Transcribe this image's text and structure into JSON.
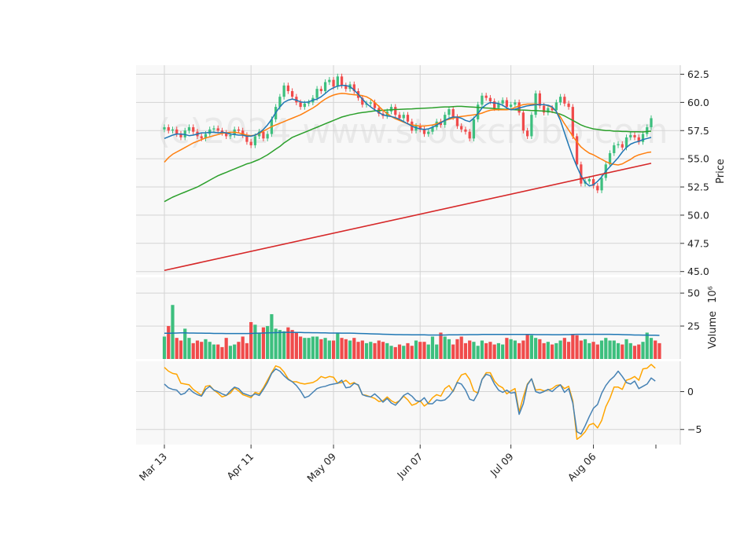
{
  "chart_data": {
    "type": "candlestick",
    "watermark": "(c)2024 www.stockcrobo.com",
    "colors": {
      "up": "#3dbf7e",
      "down": "#f04b4b",
      "ma_short": "#1f77b4",
      "ma_mid": "#ff7f0e",
      "ma_long": "#2ca02c",
      "ma_very_long": "#d62728",
      "vol_ma": "#1f77b4",
      "osc_1": "#4682b4",
      "osc_2": "#ffa500"
    },
    "x_tick_labels": [
      "Mar 13",
      "Apr 11",
      "May 09",
      "Jun 07",
      "Jul 09",
      "Aug 06"
    ],
    "price_panel": {
      "ylabel": "Price",
      "ylim": [
        44.7,
        63.3
      ],
      "yticks": [
        45.0,
        47.5,
        50.0,
        52.5,
        55.0,
        57.5,
        60.0,
        62.5
      ],
      "ytick_labels": [
        "45.0",
        "47.5",
        "50.0",
        "52.5",
        "55.0",
        "57.5",
        "60.0",
        "62.5"
      ],
      "close": [
        57.8,
        57.5,
        57.6,
        57.2,
        56.9,
        57.5,
        57.8,
        57.4,
        57.0,
        56.8,
        57.2,
        57.6,
        57.7,
        57.5,
        57.3,
        57.0,
        57.1,
        57.6,
        57.5,
        57.1,
        56.5,
        56.2,
        57.0,
        57.4,
        56.8,
        57.2,
        58.5,
        59.6,
        60.5,
        61.5,
        61.0,
        60.5,
        60.0,
        59.6,
        59.9,
        60.0,
        60.4,
        61.2,
        61.0,
        61.8,
        62.0,
        61.4,
        62.3,
        61.5,
        61.2,
        61.6,
        61.0,
        60.4,
        59.8,
        59.9,
        60.0,
        59.5,
        59.0,
        58.8,
        59.2,
        59.6,
        58.9,
        58.6,
        58.9,
        58.3,
        57.5,
        57.9,
        57.6,
        57.2,
        57.4,
        57.8,
        58.3,
        58.0,
        58.9,
        59.4,
        58.7,
        57.9,
        57.6,
        57.4,
        56.8,
        58.5,
        59.8,
        60.6,
        60.4,
        60.1,
        59.5,
        59.9,
        60.2,
        59.6,
        59.8,
        60.0,
        59.1,
        57.5,
        57.0,
        58.9,
        60.8,
        59.7,
        59.1,
        59.5,
        59.3,
        60.0,
        60.5,
        59.9,
        59.6,
        57.0,
        54.5,
        52.8,
        53.0,
        53.2,
        52.6,
        52.2,
        53.3,
        54.5,
        55.5,
        56.2,
        56.3,
        56.0,
        56.9,
        57.1,
        56.9,
        56.5,
        57.2,
        57.8,
        58.6
      ],
      "ma_short": [
        56.8,
        56.95,
        57.1,
        57.2,
        57.2,
        57.15,
        57.05,
        57.1,
        57.2,
        57.3,
        57.3,
        57.35,
        57.35,
        57.3,
        57.35,
        57.3,
        57.2,
        57.15,
        57.1,
        57.1,
        57.0,
        57.0,
        57.1,
        57.3,
        57.6,
        58.0,
        58.5,
        59.1,
        59.6,
        60.0,
        60.2,
        60.3,
        60.2,
        60.05,
        60.0,
        60.05,
        60.2,
        60.3,
        60.5,
        60.8,
        61.1,
        61.3,
        61.45,
        61.5,
        61.5,
        61.4,
        61.1,
        60.7,
        60.3,
        59.9,
        59.6,
        59.35,
        59.1,
        58.9,
        58.8,
        58.75,
        58.65,
        58.5,
        58.3,
        58.1,
        57.9,
        57.75,
        57.65,
        57.6,
        57.65,
        57.8,
        58.0,
        58.2,
        58.4,
        58.6,
        58.7,
        58.7,
        58.6,
        58.4,
        58.3,
        58.6,
        59.0,
        59.5,
        59.8,
        60.0,
        59.95,
        59.9,
        59.75,
        59.5,
        59.35,
        59.4,
        59.5,
        59.6,
        59.7,
        59.75,
        59.8,
        59.8,
        59.8,
        59.75,
        59.6,
        59.2,
        58.4,
        57.3,
        56.2,
        55.2,
        54.3,
        53.5,
        52.9,
        52.6,
        52.7,
        53.0,
        53.4,
        53.9,
        54.3,
        54.7,
        55.1,
        55.6,
        56.0,
        56.3,
        56.45,
        56.55,
        56.7,
        56.8,
        56.9
      ],
      "ma_mid": [
        54.7,
        55.1,
        55.4,
        55.6,
        55.8,
        56.0,
        56.2,
        56.4,
        56.55,
        56.7,
        56.85,
        56.95,
        57.05,
        57.15,
        57.25,
        57.3,
        57.35,
        57.35,
        57.3,
        57.2,
        57.1,
        57.05,
        57.1,
        57.25,
        57.45,
        57.65,
        57.85,
        58.0,
        58.15,
        58.3,
        58.45,
        58.6,
        58.75,
        58.9,
        59.1,
        59.3,
        59.5,
        59.75,
        60.05,
        60.3,
        60.5,
        60.65,
        60.75,
        60.8,
        60.78,
        60.72,
        60.68,
        60.65,
        60.6,
        60.5,
        60.3,
        60.0,
        59.65,
        59.3,
        59.0,
        58.75,
        58.55,
        58.4,
        58.25,
        58.1,
        58.0,
        57.95,
        57.9,
        57.9,
        57.95,
        58.0,
        58.1,
        58.25,
        58.4,
        58.5,
        58.6,
        58.7,
        58.75,
        58.8,
        58.85,
        58.9,
        58.95,
        59.05,
        59.2,
        59.3,
        59.35,
        59.35,
        59.35,
        59.35,
        59.4,
        59.55,
        59.7,
        59.8,
        59.85,
        59.85,
        59.85,
        59.8,
        59.8,
        59.7,
        59.55,
        59.2,
        58.7,
        58.1,
        57.55,
        57.0,
        56.5,
        56.05,
        55.75,
        55.5,
        55.35,
        55.15,
        54.95,
        54.75,
        54.6,
        54.5,
        54.45,
        54.55,
        54.75,
        54.95,
        55.2,
        55.35,
        55.45,
        55.55,
        55.6
      ],
      "ma_long": [
        51.2,
        51.4,
        51.6,
        51.75,
        51.9,
        52.05,
        52.2,
        52.35,
        52.5,
        52.7,
        52.9,
        53.1,
        53.3,
        53.5,
        53.65,
        53.8,
        53.95,
        54.1,
        54.25,
        54.4,
        54.55,
        54.65,
        54.8,
        54.95,
        55.15,
        55.35,
        55.6,
        55.85,
        56.1,
        56.4,
        56.65,
        56.9,
        57.05,
        57.2,
        57.35,
        57.5,
        57.65,
        57.8,
        57.95,
        58.1,
        58.25,
        58.4,
        58.55,
        58.7,
        58.8,
        58.9,
        58.97,
        59.05,
        59.1,
        59.15,
        59.2,
        59.25,
        59.28,
        59.3,
        59.32,
        59.35,
        59.37,
        59.38,
        59.4,
        59.42,
        59.43,
        59.45,
        59.47,
        59.48,
        59.5,
        59.52,
        59.55,
        59.58,
        59.6,
        59.6,
        59.62,
        59.65,
        59.65,
        59.62,
        59.6,
        59.58,
        59.55,
        59.53,
        59.5,
        59.48,
        59.45,
        59.42,
        59.4,
        59.38,
        59.37,
        59.35,
        59.33,
        59.32,
        59.3,
        59.28,
        59.27,
        59.25,
        59.23,
        59.2,
        59.15,
        59.05,
        58.95,
        58.8,
        58.6,
        58.4,
        58.2,
        58.0,
        57.85,
        57.75,
        57.65,
        57.6,
        57.55,
        57.5,
        57.5,
        57.45,
        57.45,
        57.42,
        57.42,
        57.4,
        57.4,
        57.4,
        57.38,
        57.42,
        57.45
      ],
      "ma_very_long_start": 45.1,
      "ma_very_long_end": 54.6
    },
    "volume_panel": {
      "ylabel": "Volume",
      "ylabel_exponent": "10⁶",
      "ylim": [
        0,
        62
      ],
      "yticks": [
        25,
        50
      ],
      "ytick_labels": [
        "25",
        "50"
      ],
      "volume": [
        17,
        25,
        41,
        16,
        14,
        23,
        16,
        12,
        14,
        13,
        15,
        13,
        11,
        11,
        9,
        16,
        10,
        11,
        13,
        17,
        12,
        28,
        26,
        20,
        24,
        25,
        34,
        23,
        22,
        21,
        24,
        22,
        20,
        17,
        16,
        16,
        17,
        17,
        15,
        16,
        14,
        14,
        20,
        16,
        15,
        14,
        16,
        13,
        14,
        12,
        13,
        12,
        14,
        13,
        12,
        10,
        9,
        11,
        10,
        12,
        10,
        14,
        13,
        13,
        11,
        17,
        11,
        20,
        17,
        15,
        11,
        15,
        17,
        12,
        14,
        13,
        10,
        14,
        12,
        13,
        11,
        12,
        11,
        16,
        15,
        14,
        12,
        14,
        19,
        18,
        16,
        15,
        12,
        13,
        11,
        12,
        14,
        16,
        13,
        19,
        18,
        14,
        15,
        12,
        13,
        11,
        14,
        16,
        14,
        14,
        12,
        11,
        15,
        12,
        10,
        11,
        13,
        20,
        16,
        14,
        12
      ],
      "vol_ma": [
        19.5,
        19.5,
        19.6,
        19.7,
        19.8,
        19.8,
        19.7,
        19.7,
        19.6,
        19.6,
        19.5,
        19.5,
        19.4,
        19.4,
        19.4,
        19.3,
        19.3,
        19.3,
        19.3,
        19.3,
        19.3,
        19.4,
        19.5,
        19.6,
        19.7,
        19.8,
        19.9,
        20.0,
        20.1,
        20.2,
        20.2,
        20.2,
        20.1,
        20.1,
        20.0,
        20.0,
        19.9,
        19.9,
        19.8,
        19.8,
        19.7,
        19.7,
        19.7,
        19.6,
        19.6,
        19.6,
        19.5,
        19.4,
        19.3,
        19.2,
        19.1,
        19.0,
        18.9,
        18.8,
        18.7,
        18.6,
        18.5,
        18.5,
        18.4,
        18.4,
        18.3,
        18.3,
        18.3,
        18.3,
        18.2,
        18.2,
        18.2,
        18.2,
        18.2,
        18.3,
        18.3,
        18.3,
        18.4,
        18.4,
        18.5,
        18.5,
        18.5,
        18.6,
        18.6,
        18.6,
        18.6,
        18.6,
        18.6,
        18.6,
        18.6,
        18.6,
        18.6,
        18.6,
        18.6,
        18.6,
        18.5,
        18.5,
        18.5,
        18.5,
        18.4,
        18.4,
        18.4,
        18.5,
        18.5,
        18.6,
        18.7,
        18.7,
        18.7,
        18.7,
        18.7,
        18.7,
        18.7,
        18.7,
        18.7,
        18.6,
        18.6,
        18.5,
        18.4,
        18.3,
        18.2,
        18.2,
        18.1,
        18.1,
        18.0,
        18.0,
        17.9
      ]
    },
    "oscillator_panel": {
      "ylim": [
        -7,
        4
      ],
      "yticks": [
        -5,
        0
      ],
      "ytick_labels": [
        "−5",
        "0"
      ],
      "line1": [
        1.0,
        0.5,
        0.3,
        0.2,
        -0.4,
        -0.2,
        0.4,
        -0.1,
        -0.4,
        -0.6,
        0.3,
        0.7,
        0.2,
        0.0,
        -0.3,
        -0.5,
        0.1,
        0.6,
        0.4,
        -0.2,
        -0.4,
        -0.6,
        -0.3,
        -0.5,
        0.3,
        1.2,
        2.4,
        3.0,
        2.7,
        2.1,
        1.6,
        1.3,
        0.8,
        0.1,
        -0.8,
        -0.6,
        -0.1,
        0.4,
        0.6,
        0.7,
        0.9,
        1.0,
        1.1,
        1.5,
        0.5,
        0.6,
        1.1,
        0.9,
        -0.4,
        -0.6,
        -0.7,
        -0.3,
        -0.8,
        -1.4,
        -0.9,
        -1.5,
        -1.8,
        -1.2,
        -0.5,
        -0.2,
        -0.6,
        -1.2,
        -1.3,
        -0.8,
        -1.6,
        -1.6,
        -1.1,
        -1.2,
        -1.1,
        -0.6,
        0.1,
        1.2,
        1.0,
        0.2,
        -1.0,
        -1.2,
        -0.2,
        1.6,
        2.3,
        2.1,
        1.0,
        0.2,
        -0.1,
        0.2,
        -0.2,
        -0.1,
        -3.0,
        -1.6,
        0.9,
        1.7,
        0.0,
        -0.2,
        0.0,
        0.3,
        0.0,
        0.5,
        0.9,
        -0.1,
        0.4,
        -1.5,
        -5.3,
        -5.6,
        -4.5,
        -3.3,
        -2.2,
        -1.7,
        -0.2,
        0.8,
        1.5,
        2.0,
        2.7,
        2.0,
        1.2,
        1.0,
        1.4,
        0.4,
        0.7,
        1.0,
        1.8,
        1.4
      ],
      "line2": [
        3.2,
        2.7,
        2.4,
        2.3,
        1.1,
        1.0,
        0.9,
        0.3,
        -0.1,
        -0.5,
        0.7,
        0.8,
        0.2,
        -0.2,
        -0.7,
        -0.5,
        -0.2,
        0.5,
        0.1,
        -0.4,
        -0.6,
        -0.8,
        -0.1,
        -0.3,
        0.5,
        1.5,
        2.5,
        3.4,
        3.2,
        2.6,
        1.7,
        1.3,
        1.3,
        1.1,
        1.0,
        1.1,
        1.2,
        1.5,
        2.0,
        1.8,
        2.0,
        1.9,
        1.1,
        1.2,
        1.5,
        1.0,
        1.2,
        0.8,
        -0.4,
        -0.5,
        -0.7,
        -0.9,
        -1.3,
        -1.2,
        -0.7,
        -1.2,
        -1.5,
        -1.2,
        -0.6,
        -1.1,
        -1.8,
        -1.6,
        -1.2,
        -1.9,
        -1.5,
        -0.8,
        -0.4,
        -0.6,
        0.4,
        0.8,
        0.0,
        1.3,
        2.2,
        2.4,
        1.6,
        0.1,
        -0.2,
        1.6,
        2.5,
        2.5,
        1.4,
        0.8,
        0.5,
        -0.3,
        0.1,
        0.4,
        -2.7,
        -0.7,
        1.0,
        1.7,
        0.2,
        0.3,
        0.1,
        0.2,
        0.4,
        0.8,
        0.9,
        0.4,
        0.7,
        -1.2,
        -6.3,
        -5.9,
        -5.3,
        -4.4,
        -4.2,
        -4.8,
        -3.8,
        -2.0,
        -0.9,
        0.6,
        0.6,
        0.3,
        1.5,
        1.7,
        2.0,
        1.5,
        3.0,
        3.1,
        3.6,
        3.1
      ]
    }
  }
}
